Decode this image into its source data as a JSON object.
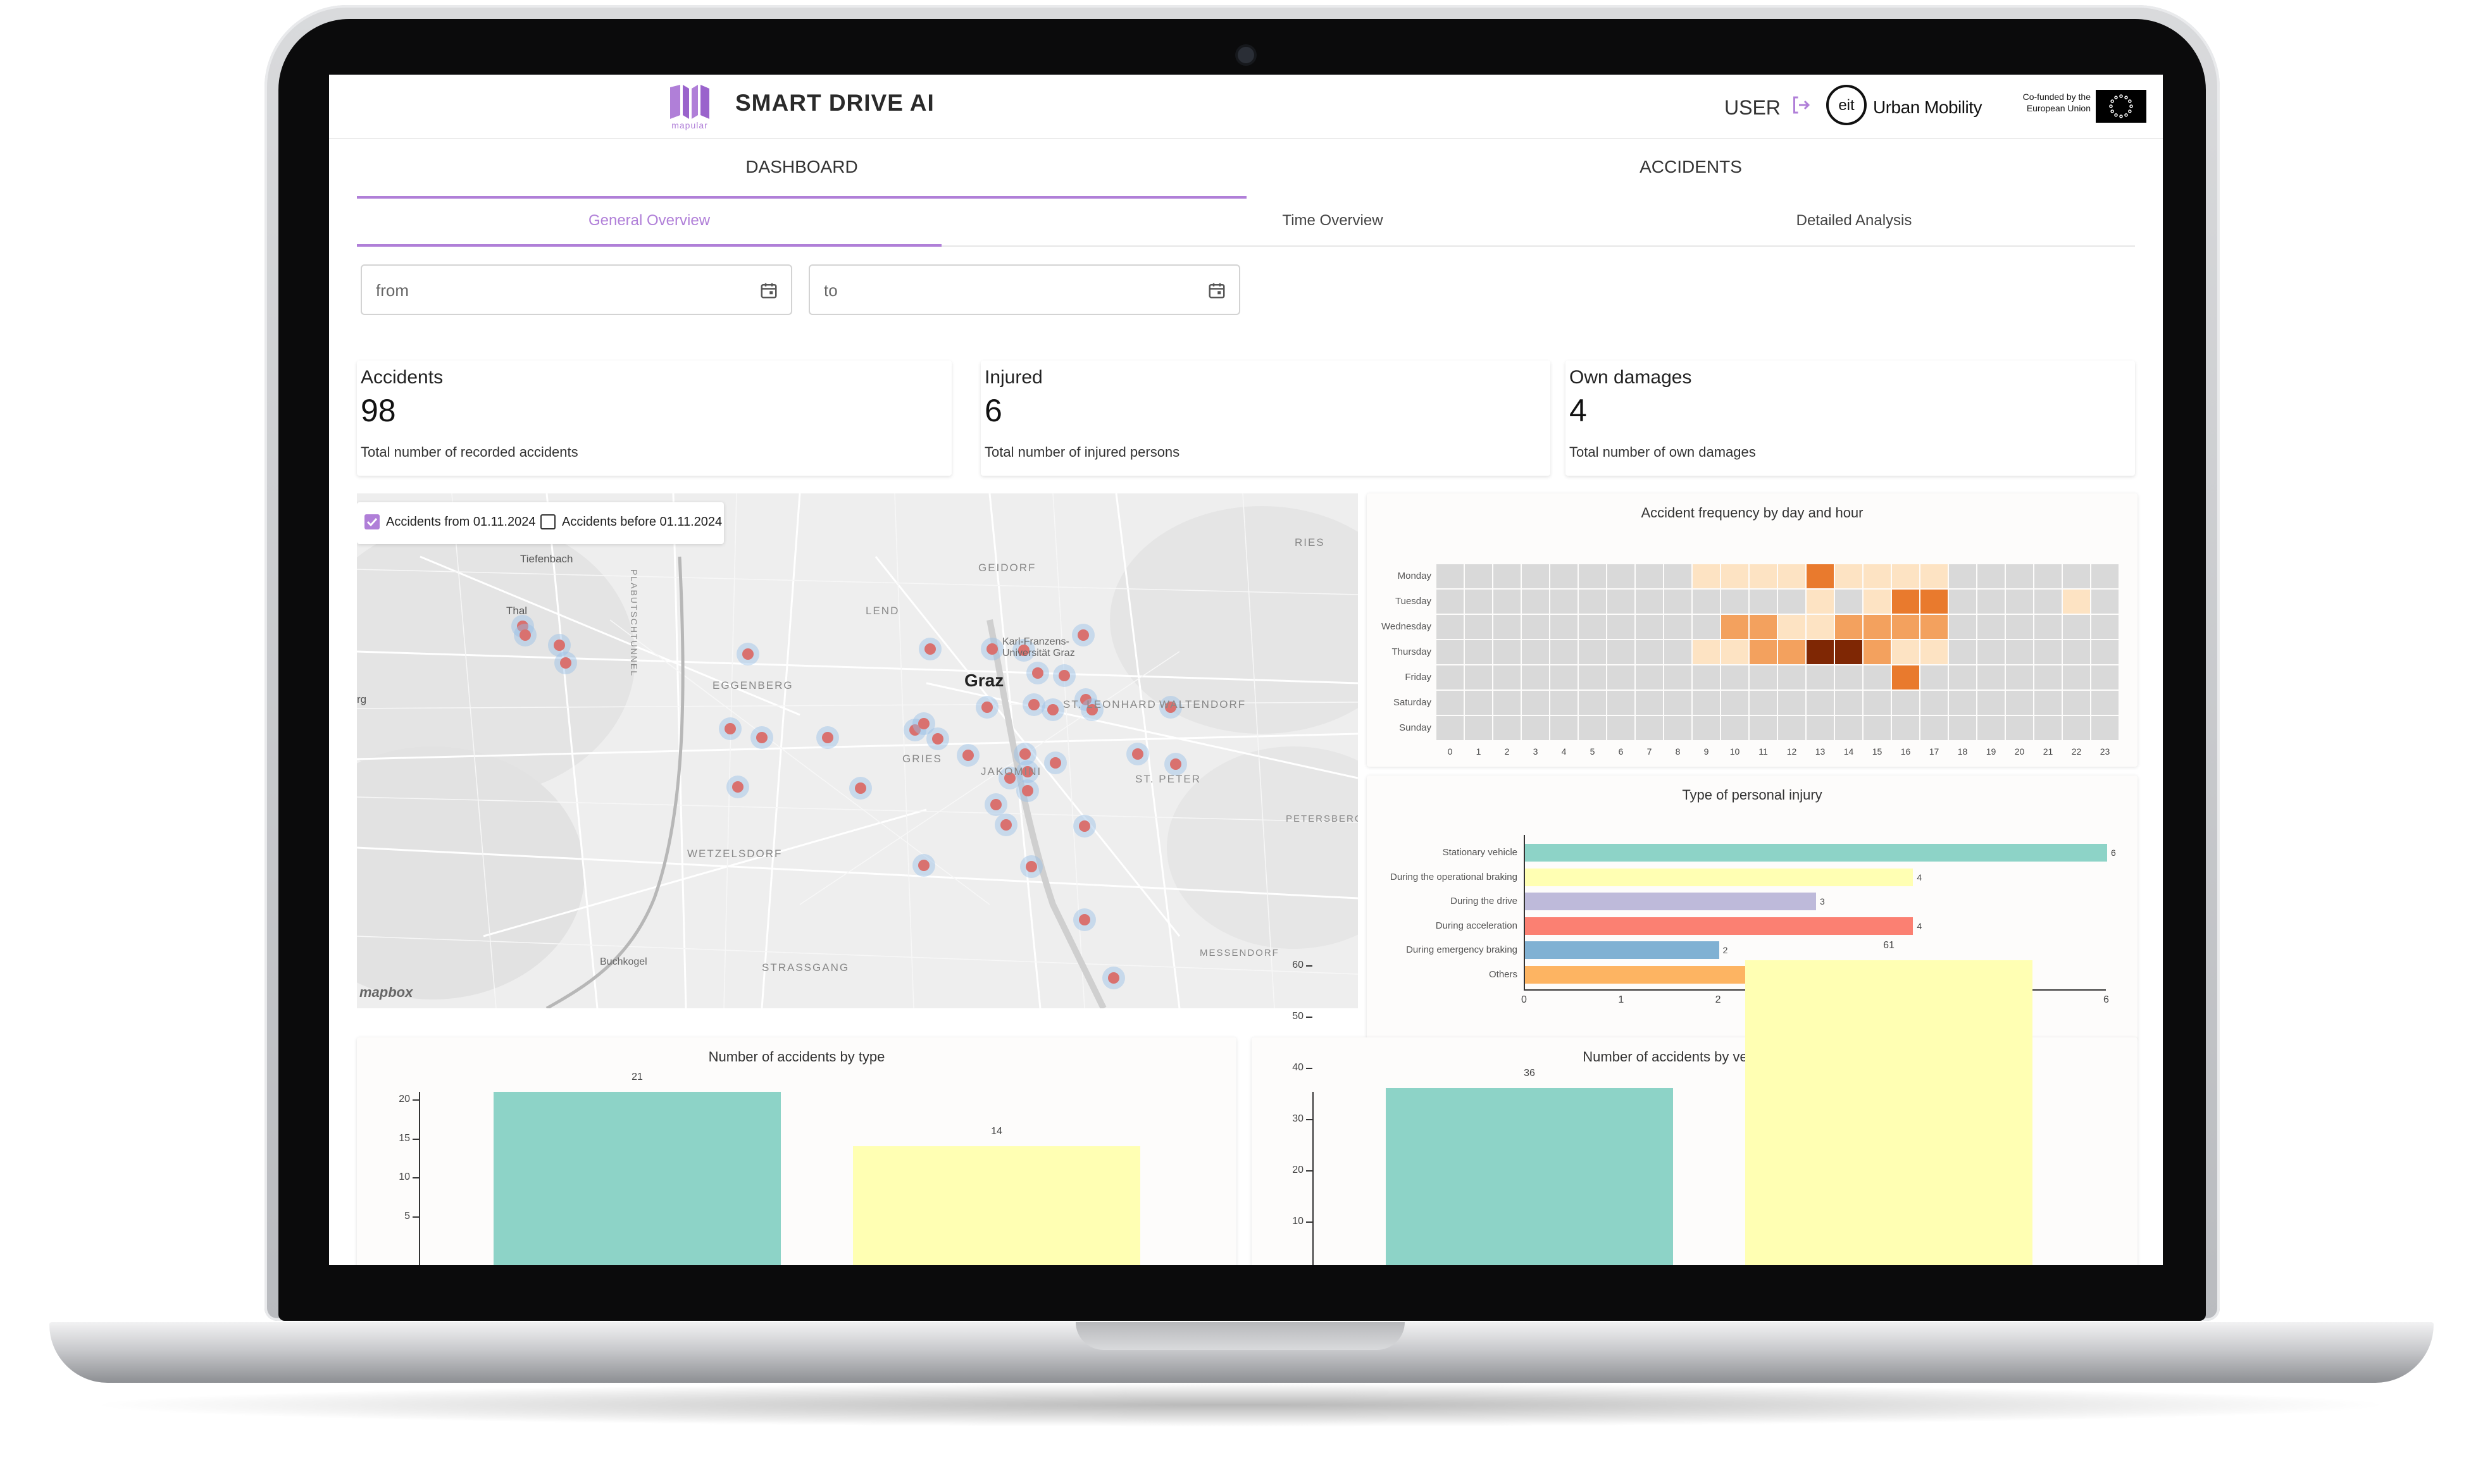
{
  "colors": {
    "accent": "#b07fd8",
    "teal": "#8dd3c7",
    "yellow": "#ffffb3",
    "lavender": "#bebada",
    "salmon": "#fb8072",
    "blue": "#80b1d3",
    "orange": "#fdb462",
    "heat_light": "#fde3c3",
    "heat_mid": "#f3a15e",
    "heat_strong": "#e97a2d",
    "heat_dark": "#7f2704",
    "heat_empty": "#d9d9d9"
  },
  "header": {
    "logo_word": "mapular",
    "title": "SMART DRIVE AI",
    "user_label": "USER",
    "partner_text": "Urban Mobility",
    "cofund_line1": "Co-funded by the",
    "cofund_line2": "European Union",
    "logout_icon": "logout-icon",
    "eit_mark": "eit"
  },
  "tabs": {
    "main": [
      {
        "label": "DASHBOARD",
        "active": true
      },
      {
        "label": "ACCIDENTS",
        "active": false
      }
    ],
    "sub": [
      {
        "label": "General Overview",
        "active": true
      },
      {
        "label": "Time Overview",
        "active": false
      },
      {
        "label": "Detailed Analysis",
        "active": false
      }
    ]
  },
  "filters": {
    "from_placeholder": "from",
    "to_placeholder": "to",
    "calendar_icon": "calendar-icon"
  },
  "kpis": [
    {
      "title": "Accidents",
      "value": "98",
      "desc": "Total number of recorded accidents"
    },
    {
      "title": "Injured",
      "value": "6",
      "desc": "Total number of injured persons"
    },
    {
      "title": "Own damages",
      "value": "4",
      "desc": "Total number of own damages"
    }
  ],
  "map": {
    "checkbox_from": {
      "label": "Accidents from 01.11.2024",
      "checked": true
    },
    "checkbox_before": {
      "label": "Accidents before 01.11.2024",
      "checked": false
    },
    "labels": {
      "tiefenbach": "Tiefenbach",
      "thal": "Thal",
      "plabutsch": "PLABUTSCHTUNNEL",
      "geidorf": "GEIDORF",
      "ries": "RIES",
      "lend": "LEND",
      "eggenberg": "EGGENBERG",
      "graz": "Graz",
      "uni": "Karl-Franzens-Universität Graz",
      "waltendorf": "WALTENDORF",
      "leonhard": "ST. LEONHARD",
      "gries": "GRIES",
      "jakomini": "JAKOMINI",
      "st_peter": "ST. PETER",
      "petersbergen": "PETERSBERGEN",
      "wetzelsdorf": "WETZELSDORF",
      "buchkogel": "Buchkogel",
      "strassgang": "STRASSGANG",
      "messendorf": "MESSENDORF",
      "edge_rg": "rg"
    },
    "attribution": "mapbox"
  },
  "chart_data": [
    {
      "type": "heatmap",
      "title": "Accident frequency by day and hour",
      "rows": [
        "Monday",
        "Tuesday",
        "Wednesday",
        "Thursday",
        "Friday",
        "Saturday",
        "Sunday"
      ],
      "columns": [
        "0",
        "1",
        "2",
        "3",
        "4",
        "5",
        "6",
        "7",
        "8",
        "9",
        "10",
        "11",
        "12",
        "13",
        "14",
        "15",
        "16",
        "17",
        "18",
        "19",
        "20",
        "21",
        "22",
        "23"
      ],
      "values": [
        [
          0,
          0,
          0,
          0,
          0,
          0,
          0,
          0,
          0,
          1,
          1,
          1,
          1,
          3,
          1,
          1,
          1,
          1,
          0,
          0,
          0,
          0,
          0,
          0
        ],
        [
          0,
          0,
          0,
          0,
          0,
          0,
          0,
          0,
          0,
          0,
          0,
          0,
          0,
          1,
          0,
          1,
          3,
          3,
          0,
          0,
          0,
          0,
          1,
          0
        ],
        [
          0,
          0,
          0,
          0,
          0,
          0,
          0,
          0,
          0,
          0,
          2,
          2,
          1,
          1,
          2,
          2,
          2,
          2,
          0,
          0,
          0,
          0,
          0,
          0
        ],
        [
          0,
          0,
          0,
          0,
          0,
          0,
          0,
          0,
          0,
          1,
          1,
          2,
          2,
          4,
          4,
          2,
          1,
          1,
          0,
          0,
          0,
          0,
          0,
          0
        ],
        [
          0,
          0,
          0,
          0,
          0,
          0,
          0,
          0,
          0,
          0,
          0,
          0,
          0,
          0,
          0,
          0,
          3,
          0,
          0,
          0,
          0,
          0,
          0,
          0
        ],
        [
          0,
          0,
          0,
          0,
          0,
          0,
          0,
          0,
          0,
          0,
          0,
          0,
          0,
          0,
          0,
          0,
          0,
          0,
          0,
          0,
          0,
          0,
          0,
          0
        ],
        [
          0,
          0,
          0,
          0,
          0,
          0,
          0,
          0,
          0,
          0,
          0,
          0,
          0,
          0,
          0,
          0,
          0,
          0,
          0,
          0,
          0,
          0,
          0,
          0
        ]
      ]
    },
    {
      "type": "bar",
      "orientation": "horizontal",
      "title": "Type of personal injury",
      "categories": [
        "Stationary vehicle",
        "During the operational braking",
        "During the drive",
        "During acceleration",
        "During emergency braking",
        "Others"
      ],
      "values": [
        6,
        4,
        3,
        4,
        2,
        4
      ],
      "xlim": [
        0,
        6
      ],
      "xticks": [
        "0",
        "1",
        "2",
        "3",
        "4",
        "5",
        "6"
      ]
    },
    {
      "type": "bar",
      "title": "Number of accidents by type",
      "values": [
        21,
        14
      ],
      "ylim": [
        0,
        22
      ],
      "yticks": [
        "5",
        "10",
        "15",
        "20"
      ]
    },
    {
      "type": "bar",
      "title": "Number of accidents by vehicle type",
      "values": [
        36,
        61
      ],
      "ylim": [
        0,
        65
      ],
      "yticks": [
        "10",
        "20",
        "30",
        "40",
        "50",
        "60"
      ]
    }
  ]
}
